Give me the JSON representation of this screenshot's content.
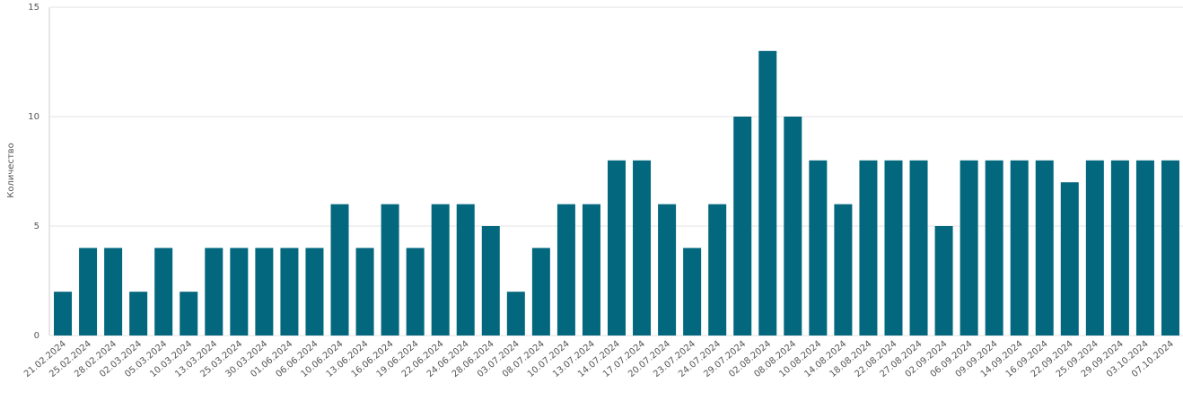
{
  "chart_data": {
    "type": "bar",
    "y_label": "Количество",
    "categories": [
      "21.02.2024",
      "25.02.2024",
      "28.02.2024",
      "02.03.2024",
      "05.03.2024",
      "10.03.2024",
      "13.03.2024",
      "25.03.2024",
      "30.03.2024",
      "01.06.2024",
      "06.06.2024",
      "10.06.2024",
      "13.06.2024",
      "16.06.2024",
      "19.06.2024",
      "22.06.2024",
      "24.06.2024",
      "28.06.2024",
      "03.07.2024",
      "08.07.2024",
      "10.07.2024",
      "13.07.2024",
      "14.07.2024",
      "17.07.2024",
      "20.07.2024",
      "23.07.2024",
      "24.07.2024",
      "29.07.2024",
      "02.08.2024",
      "08.08.2024",
      "10.08.2024",
      "14.08.2024",
      "18.08.2024",
      "22.08.2024",
      "27.08.2024",
      "02.09.2024",
      "06.09.2024",
      "09.09.2024",
      "14.09.2024",
      "16.09.2024",
      "22.09.2024",
      "25.09.2024",
      "29.09.2024",
      "03.10.2024",
      "07.10.2024"
    ],
    "values": [
      2,
      4,
      4,
      2,
      4,
      2,
      4,
      4,
      4,
      4,
      4,
      6,
      4,
      6,
      4,
      6,
      6,
      5,
      2,
      4,
      6,
      6,
      8,
      8,
      6,
      4,
      6,
      10,
      13,
      10,
      8,
      6,
      8,
      8,
      8,
      5,
      8,
      8,
      8,
      8,
      7,
      8,
      8,
      8,
      8
    ],
    "color": "#03677e",
    "ylim": [
      0,
      15
    ],
    "yticks": [
      0,
      5,
      10,
      15
    ],
    "grid": true
  }
}
